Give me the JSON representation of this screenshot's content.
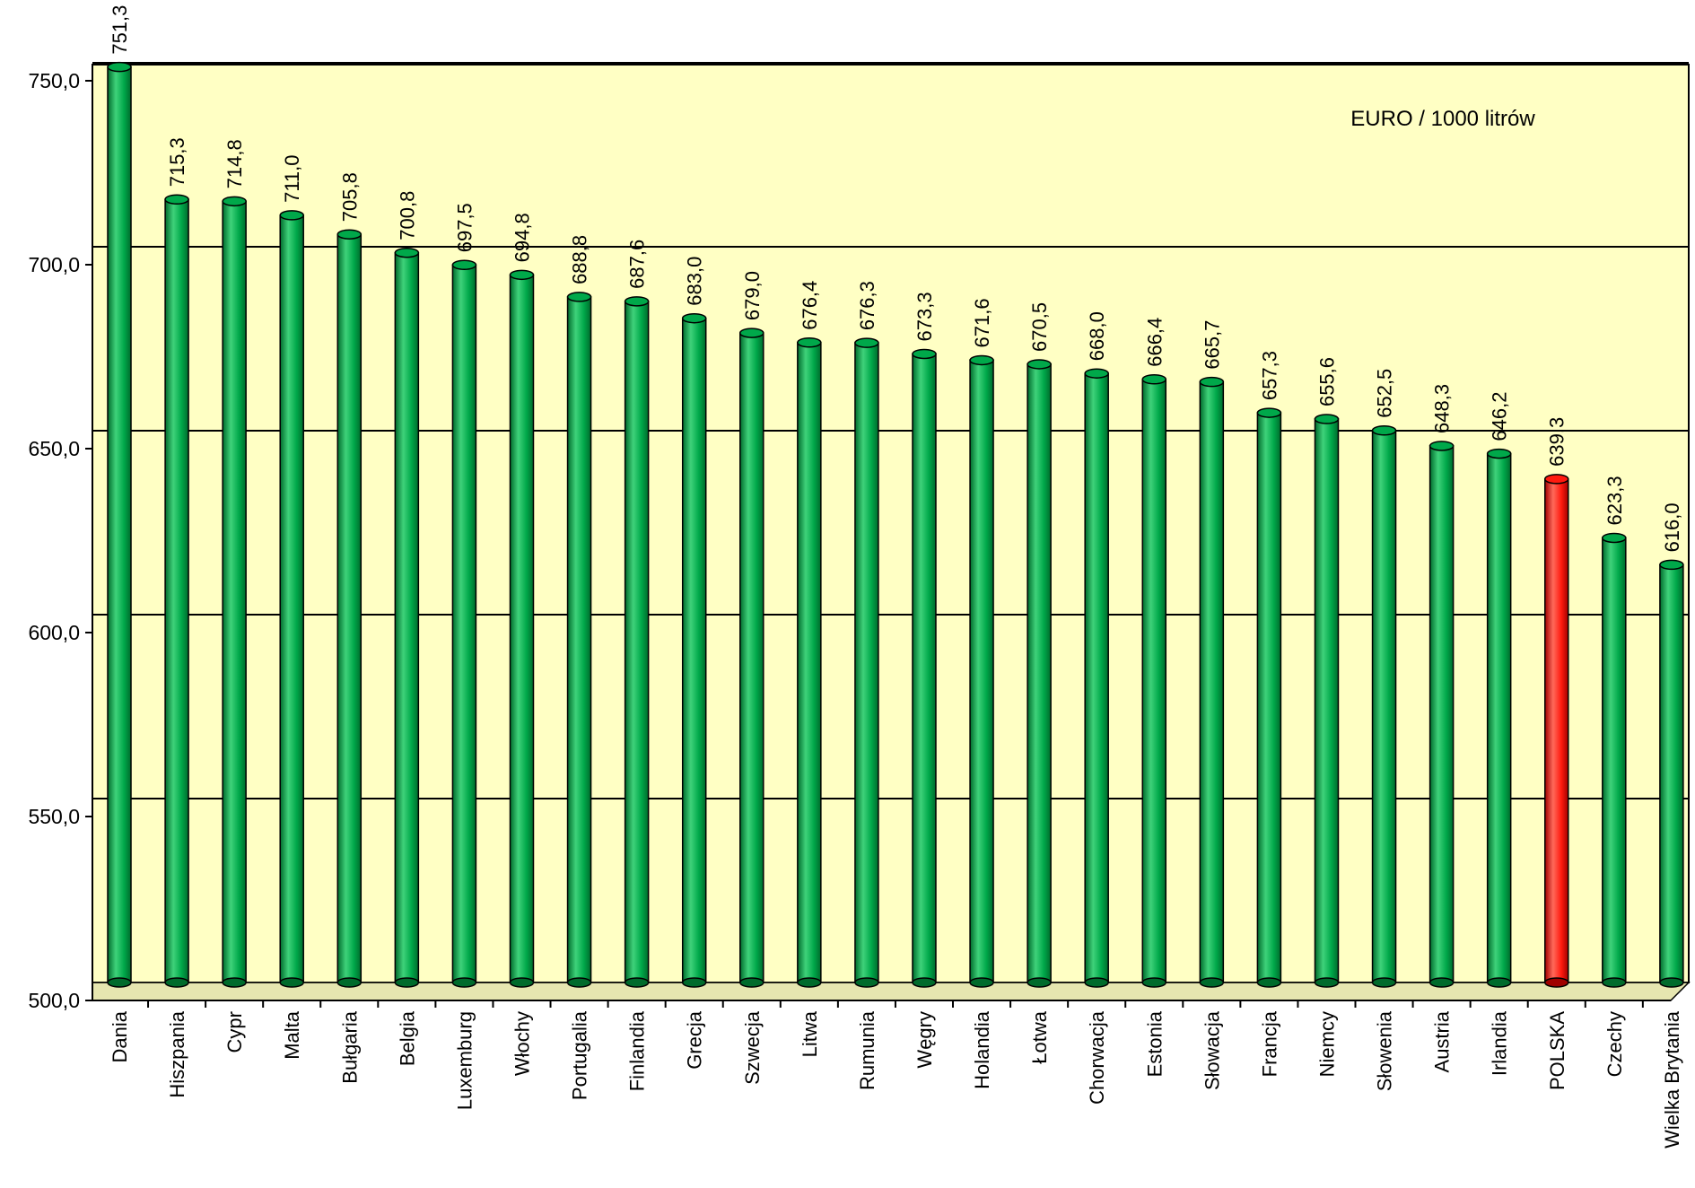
{
  "chart_data": {
    "type": "bar",
    "title": "",
    "annotation": "EURO / 1000 litrów",
    "xlabel": "",
    "ylabel": "",
    "ylim": [
      500,
      750
    ],
    "y_ticks": [
      "750,0",
      "700,0",
      "650,0",
      "600,0",
      "550,0",
      "500,0"
    ],
    "y_tick_values": [
      750,
      700,
      650,
      600,
      550,
      500
    ],
    "grid": true,
    "legend": "none",
    "categories": [
      "Dania",
      "Hiszpania",
      "Cypr",
      "Malta",
      "Bułgaria",
      "Belgia",
      "Luxemburg",
      "Włochy",
      "Portugalia",
      "Finlandia",
      "Grecja",
      "Szwecja",
      "Litwa",
      "Rumunia",
      "Węgry",
      "Holandia",
      "Łotwa",
      "Chorwacja",
      "Estonia",
      "Słowacja",
      "Francja",
      "Niemcy",
      "Słowenia",
      "Austria",
      "Irlandia",
      "POLSKA",
      "Czechy",
      "Wielka Brytania"
    ],
    "values": [
      751.3,
      715.3,
      714.8,
      711.0,
      705.8,
      700.8,
      697.5,
      694.8,
      688.8,
      687.6,
      683.0,
      679.0,
      676.4,
      676.3,
      673.3,
      671.6,
      670.5,
      668.0,
      666.4,
      665.7,
      657.3,
      655.6,
      652.5,
      648.3,
      646.2,
      639.3,
      623.3,
      616.0
    ],
    "value_labels": [
      "751,3",
      "715,3",
      "714,8",
      "711,0",
      "705,8",
      "700,8",
      "697,5",
      "694,8",
      "688,8",
      "687,6",
      "683,0",
      "679,0",
      "676,4",
      "676,3",
      "673,3",
      "671,6",
      "670,5",
      "668,0",
      "666,4",
      "665,7",
      "657,3",
      "655,6",
      "652,5",
      "648,3",
      "646,2",
      "639,3",
      "623,3",
      "616,0"
    ],
    "highlight": "POLSKA",
    "colors": {
      "plot_background": "#ffffc4",
      "bar": "#00a84a",
      "bar_dark": "#006b2c",
      "bar_light": "#3fd27a",
      "highlight_bar": "#ff1a0f",
      "highlight_dark": "#a00000",
      "highlight_light": "#ff6a5a",
      "gridline": "#000000"
    }
  }
}
